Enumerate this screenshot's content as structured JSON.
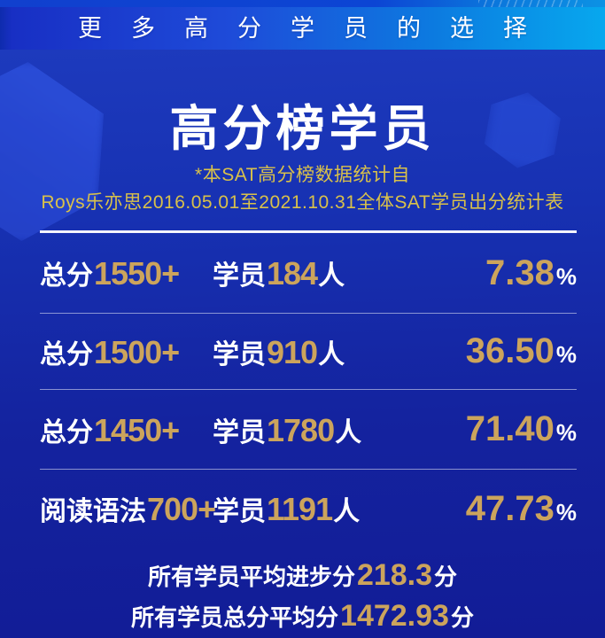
{
  "banner": {
    "label": "更多高分学员的选择"
  },
  "header": {
    "title": "高分榜学员",
    "subtitle_line1": "*本SAT高分榜数据统计自",
    "subtitle_line2": "Roys乐亦思2016.05.01至2021.10.31全体SAT学员出分统计表"
  },
  "stats": {
    "rows": [
      {
        "label_prefix": "总分",
        "label_value": "1550+",
        "student_prefix": "学员",
        "student_count": "184",
        "student_suffix": "人",
        "percent": "7.38",
        "percent_sign": "%"
      },
      {
        "label_prefix": "总分",
        "label_value": "1500+",
        "student_prefix": "学员",
        "student_count": "910",
        "student_suffix": "人",
        "percent": "36.50",
        "percent_sign": "%"
      },
      {
        "label_prefix": "总分",
        "label_value": "1450+",
        "student_prefix": "学员",
        "student_count": "1780",
        "student_suffix": "人",
        "percent": "71.40",
        "percent_sign": "%"
      },
      {
        "label_prefix": "阅读语法",
        "label_value": "700+",
        "student_prefix": "学员",
        "student_count": "1191",
        "student_suffix": "人",
        "percent": "47.73",
        "percent_sign": "%"
      }
    ]
  },
  "summary": {
    "line1_prefix": "所有学员平均进步分",
    "line1_value": "218.3",
    "line1_suffix": "分",
    "line2_prefix": "所有学员总分平均分",
    "line2_value": "1472.93",
    "line2_suffix": "分"
  },
  "colors": {
    "gold": "#CCA45C",
    "subtitle_yellow": "#D9C14A",
    "banner_blue": "#182FC4",
    "banner_cyan": "#07A8EE",
    "background_top": "#1D3ABD",
    "background_bottom": "#121C96",
    "text_white": "#FFFFFF"
  },
  "chart_data": {
    "type": "table",
    "title": "高分榜学员",
    "source_note": "*本SAT高分榜数据统计自 Roys乐亦思2016.05.01至2021.10.31全体SAT学员出分统计表",
    "rows": [
      {
        "score_band": "总分1550+",
        "students": 184,
        "percent": 7.38
      },
      {
        "score_band": "总分1500+",
        "students": 910,
        "percent": 36.5
      },
      {
        "score_band": "总分1450+",
        "students": 1780,
        "percent": 71.4
      },
      {
        "score_band": "阅读语法700+",
        "students": 1191,
        "percent": 47.73
      }
    ],
    "summary": [
      {
        "label": "所有学员平均进步分",
        "value": 218.3,
        "unit": "分"
      },
      {
        "label": "所有学员总分平均分",
        "value": 1472.93,
        "unit": "分"
      }
    ]
  }
}
